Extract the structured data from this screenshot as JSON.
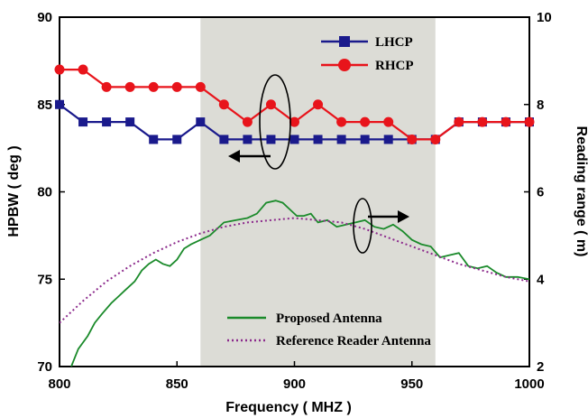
{
  "chart_data": {
    "type": "line",
    "xlabel": "Frequency ( MHZ )",
    "ylabel_left": "HPBW ( deg )",
    "ylabel_right": "Reading range ( m)",
    "xlim": [
      800,
      1000
    ],
    "ylim_left": [
      70,
      90
    ],
    "ylim_right": [
      2,
      10
    ],
    "xticks": [
      800,
      850,
      900,
      950,
      1000
    ],
    "yticks_left": [
      70,
      75,
      80,
      85,
      90
    ],
    "yticks_right": [
      2,
      4,
      6,
      8,
      10
    ],
    "shaded_band": [
      860,
      960
    ],
    "x_hpbw": [
      800,
      810,
      820,
      830,
      840,
      850,
      860,
      870,
      880,
      890,
      900,
      910,
      920,
      930,
      940,
      950,
      960,
      970,
      980,
      990,
      1000
    ],
    "series": [
      {
        "name": "LHCP",
        "axis": "left",
        "color": "#1a1a8c",
        "marker": "square",
        "values": [
          85,
          84,
          84,
          84,
          83,
          83,
          84,
          83,
          83,
          83,
          83,
          83,
          83,
          83,
          83,
          83,
          83,
          84,
          84,
          84,
          84
        ]
      },
      {
        "name": "RHCP",
        "axis": "left",
        "color": "#e8141b",
        "marker": "circle",
        "values": [
          87,
          87,
          86,
          86,
          86,
          86,
          86,
          85,
          84,
          85,
          84,
          85,
          84,
          84,
          84,
          83,
          83,
          84,
          84,
          84,
          84
        ]
      },
      {
        "name": "Proposed Antenna",
        "axis": "right",
        "color": "#1a8a2a",
        "style": "solid",
        "x": [
          805,
          808,
          812,
          815,
          818,
          822,
          825,
          828,
          832,
          835,
          838,
          841,
          844,
          847,
          850,
          853,
          856,
          860,
          864,
          867,
          870,
          875,
          880,
          884,
          888,
          892,
          895,
          898,
          901,
          904,
          907,
          910,
          914,
          918,
          922,
          926,
          930,
          934,
          938,
          942,
          946,
          950,
          954,
          958,
          962,
          966,
          970,
          974,
          978,
          982,
          986,
          990,
          995,
          1000
        ],
        "values": [
          2.0,
          2.4,
          2.7,
          3.0,
          3.2,
          3.45,
          3.6,
          3.75,
          3.95,
          4.2,
          4.35,
          4.45,
          4.35,
          4.3,
          4.45,
          4.7,
          4.8,
          4.9,
          5.0,
          5.15,
          5.3,
          5.35,
          5.4,
          5.5,
          5.75,
          5.8,
          5.75,
          5.6,
          5.45,
          5.45,
          5.5,
          5.3,
          5.35,
          5.2,
          5.25,
          5.3,
          5.35,
          5.2,
          5.15,
          5.25,
          5.1,
          4.9,
          4.8,
          4.75,
          4.5,
          4.55,
          4.6,
          4.3,
          4.25,
          4.3,
          4.15,
          4.05,
          4.05,
          4.0
        ]
      },
      {
        "name": "Reference Reader Antenna",
        "axis": "right",
        "color": "#8c2a8c",
        "style": "dotted",
        "x": [
          800,
          810,
          820,
          830,
          840,
          850,
          860,
          870,
          880,
          890,
          900,
          910,
          920,
          930,
          940,
          950,
          960,
          970,
          980,
          990,
          1000
        ],
        "values": [
          3.0,
          3.5,
          3.95,
          4.3,
          4.6,
          4.85,
          5.05,
          5.2,
          5.3,
          5.35,
          5.4,
          5.35,
          5.3,
          5.15,
          4.95,
          4.75,
          4.55,
          4.35,
          4.2,
          4.05,
          3.95
        ]
      }
    ]
  }
}
